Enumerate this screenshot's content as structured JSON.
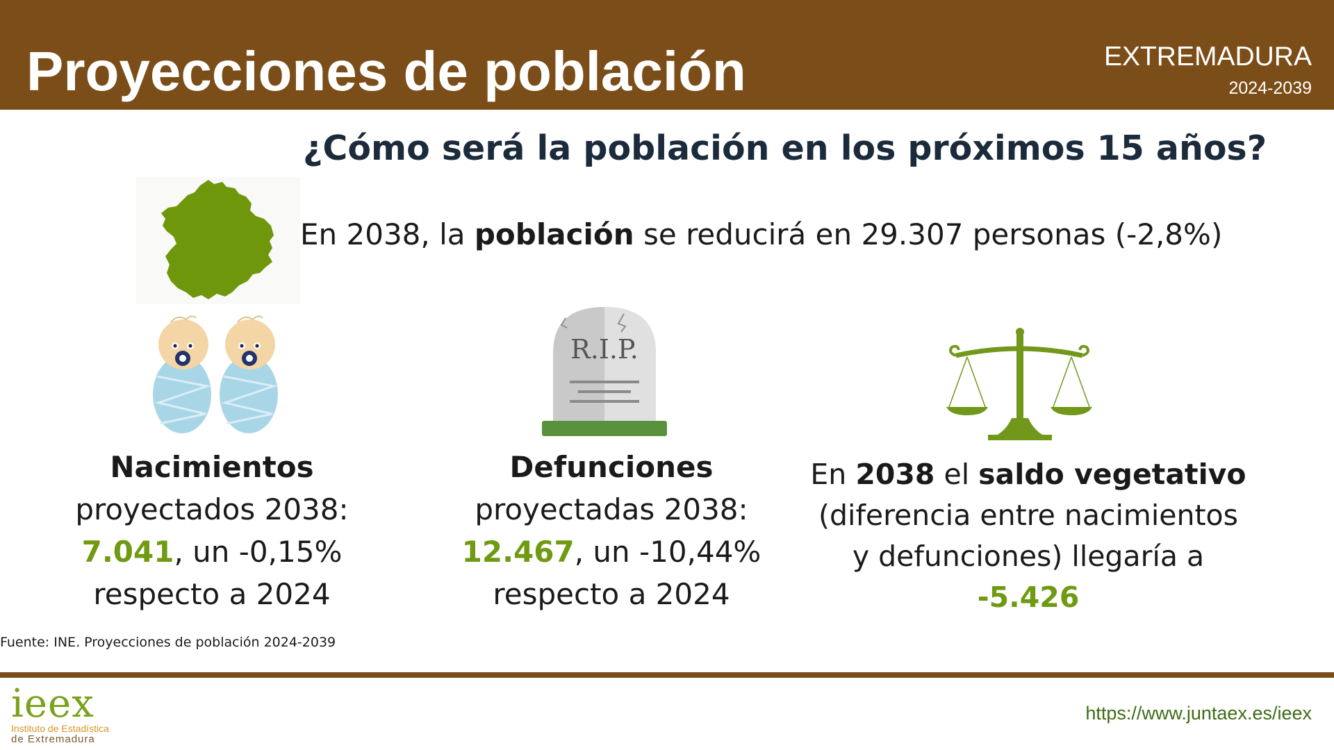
{
  "header": {
    "title": "Proyecciones de población",
    "region": "EXTREMADURA",
    "years": "2024-2039"
  },
  "question": "¿Cómo será la población en los próximos 15 años?",
  "intro": {
    "prefix": "En 2038, la ",
    "bold": "población",
    "suffix": " se reducirá en 29.307 personas (-2,8%)"
  },
  "births": {
    "title": "Nacimientos",
    "line1": "proyectados 2038:",
    "value": "7.041",
    "change": ", un -0,15%",
    "line3": "respecto a 2024"
  },
  "deaths": {
    "title": "Defunciones",
    "line1": "proyectadas 2038:",
    "value": "12.467",
    "change": ", un -10,44%",
    "line3": "respecto a 2024",
    "tomb_text": "R.I.P."
  },
  "balance": {
    "p1": "En ",
    "year": "2038",
    "p2": " el ",
    "label": "saldo vegetativo",
    "line2": "(diferencia entre nacimientos",
    "line3": "y defunciones) llegaría a",
    "value": "-5.426"
  },
  "source": "Fuente: INE. Proyecciones de población 2024-2039",
  "footer": {
    "logo_mark": "ieex",
    "logo_line1": "Instituto de Estadística",
    "logo_line2": "de Extremadura",
    "url": "https://www.juntaex.es/ieex"
  },
  "colors": {
    "header_bg": "#7b4e19",
    "accent_green": "#6f9a12",
    "question_text": "#1b2b3c",
    "url_text": "#3f6b16"
  },
  "icons": [
    "extremadura-map-icon",
    "babies-icon",
    "tombstone-icon",
    "balance-scale-icon"
  ]
}
